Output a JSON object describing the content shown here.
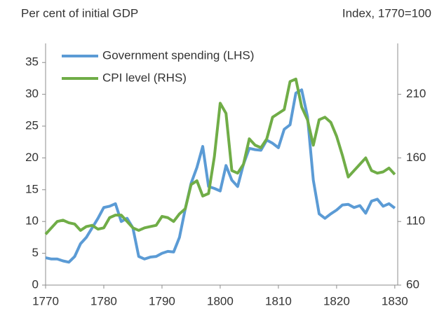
{
  "chart_data": {
    "type": "line",
    "y_label": "Per cent of initial GDP",
    "y2_label": "Index, 1770=100",
    "x": [
      1770,
      1771,
      1772,
      1773,
      1774,
      1775,
      1776,
      1777,
      1778,
      1779,
      1780,
      1781,
      1782,
      1783,
      1784,
      1785,
      1786,
      1787,
      1788,
      1789,
      1790,
      1791,
      1792,
      1793,
      1794,
      1795,
      1796,
      1797,
      1798,
      1799,
      1800,
      1801,
      1802,
      1803,
      1804,
      1805,
      1806,
      1807,
      1808,
      1809,
      1810,
      1811,
      1812,
      1813,
      1814,
      1815,
      1816,
      1817,
      1818,
      1819,
      1820,
      1821,
      1822,
      1823,
      1824,
      1825,
      1826,
      1827,
      1828,
      1829,
      1830
    ],
    "series": [
      {
        "name": "Government spending (LHS)",
        "color": "#5b9bd5",
        "axis": "y",
        "values": [
          4.3,
          4.1,
          4.1,
          3.8,
          3.6,
          4.5,
          6.5,
          7.5,
          9,
          10.5,
          12.2,
          12.4,
          12.8,
          10,
          10.5,
          9,
          4.5,
          4.1,
          4.4,
          4.5,
          5,
          5.3,
          5.2,
          7.5,
          12,
          16,
          18.5,
          21.8,
          15.5,
          15.2,
          14.8,
          18.8,
          16.5,
          15.5,
          19,
          21.5,
          21.3,
          21.2,
          22.8,
          22.3,
          21.6,
          24.5,
          25.2,
          30.2,
          30.7,
          26.5,
          16.5,
          11.2,
          10.5,
          11.2,
          11.8,
          12.6,
          12.7,
          12.2,
          12.5,
          11.3,
          13.2,
          13.5,
          12.4,
          12.8,
          12.1
        ]
      },
      {
        "name": "CPI level (RHS)",
        "color": "#70ad47",
        "axis": "y2",
        "values": [
          100,
          105,
          110,
          111,
          109,
          108,
          103,
          106,
          107,
          104,
          105,
          113,
          115,
          115,
          110,
          105,
          103,
          105,
          106,
          107,
          114,
          113,
          110,
          116,
          120,
          139,
          142,
          130,
          132,
          161,
          203,
          195,
          150,
          148,
          155,
          175,
          170,
          168,
          175,
          192,
          195,
          198,
          220,
          222,
          200,
          190,
          170,
          190,
          192,
          188,
          177,
          162,
          145,
          150,
          155,
          160,
          150,
          148,
          149,
          152,
          147
        ]
      }
    ],
    "xlim": [
      1770,
      1830.5
    ],
    "xticks": [
      1770,
      1780,
      1790,
      1800,
      1810,
      1820,
      1830
    ],
    "ylim": [
      0,
      38
    ],
    "yticks": [
      0,
      5,
      10,
      15,
      20,
      25,
      30,
      35
    ],
    "y2lim": [
      60,
      250
    ],
    "y2ticks": [
      60,
      110,
      160,
      210
    ],
    "legend": "upper left",
    "grid": false
  }
}
